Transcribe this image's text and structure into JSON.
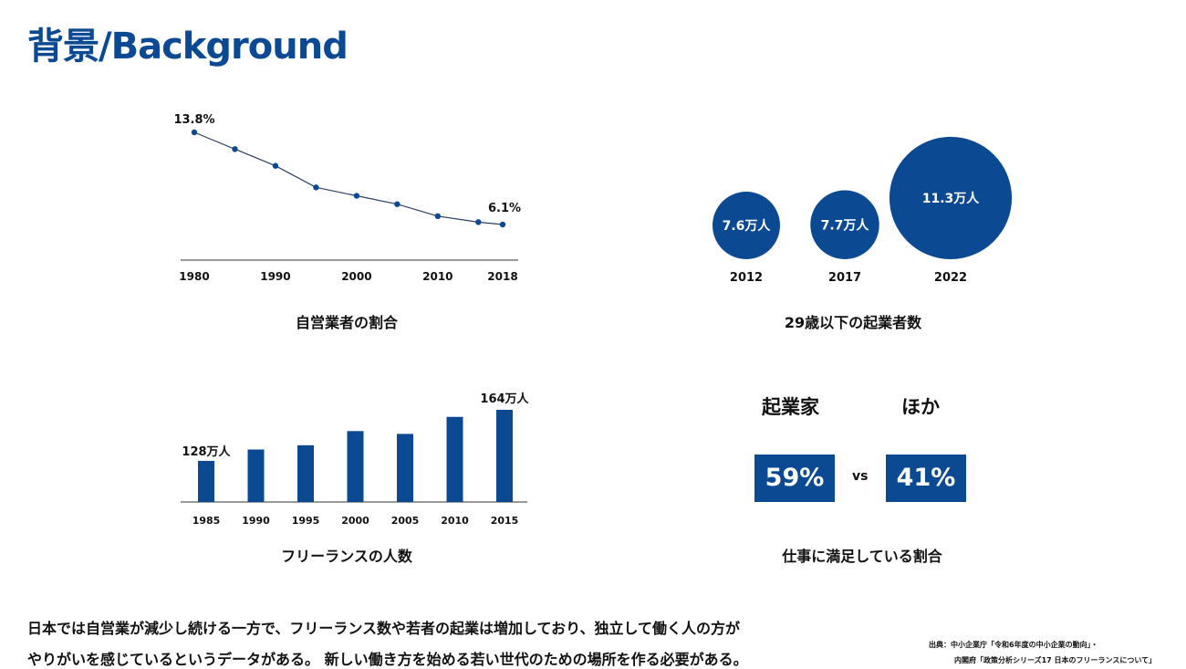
{
  "title": "背景/Background",
  "colors": {
    "accent": "#0b4a92"
  },
  "chart_data": [
    {
      "type": "line",
      "title": "自営業者の割合",
      "x": [
        1980,
        1985,
        1990,
        1995,
        2000,
        2005,
        2010,
        2015,
        2018
      ],
      "values": [
        13.8,
        12.4,
        11.0,
        9.2,
        8.5,
        7.8,
        6.8,
        6.3,
        6.1
      ],
      "xticks": [
        "1980",
        "1990",
        "2000",
        "2010",
        "2018"
      ],
      "data_labels": {
        "first": "13.8%",
        "last": "6.1%"
      },
      "ylim": [
        4,
        14.5
      ]
    },
    {
      "type": "bubble",
      "title": "29歳以下の起業者数",
      "categories": [
        "2012",
        "2017",
        "2022"
      ],
      "values": [
        7.6,
        7.7,
        11.3
      ],
      "labels": [
        "7.6万人",
        "7.7万人",
        "11.3万人"
      ]
    },
    {
      "type": "bar",
      "title": "フリーランスの人数",
      "categories": [
        "1985",
        "1990",
        "1995",
        "2000",
        "2005",
        "2010",
        "2015"
      ],
      "values": [
        128,
        136,
        139,
        149,
        147,
        159,
        164
      ],
      "data_labels": {
        "first": "128万人",
        "last": "164万人"
      },
      "ylim": [
        99,
        170
      ]
    },
    {
      "type": "comparison",
      "title": "仕事に満足している割合",
      "categories": [
        "起業家",
        "ほか"
      ],
      "values": [
        "59%",
        "41%"
      ],
      "separator": "vs"
    }
  ],
  "body": [
    "日本では自営業が減少し続ける一方で、フリーランス数や若者の起業は増加しており、独立して働く人の方が",
    "やりがいを感じているというデータがある。 新しい働き方を始める若い世代のための場所を作る必要がある。"
  ],
  "source": [
    "出典：中小企業庁「令和6年度の中小企業の動向」・",
    "内閣府「政策分析シリーズ17 日本のフリーランスについて」"
  ]
}
